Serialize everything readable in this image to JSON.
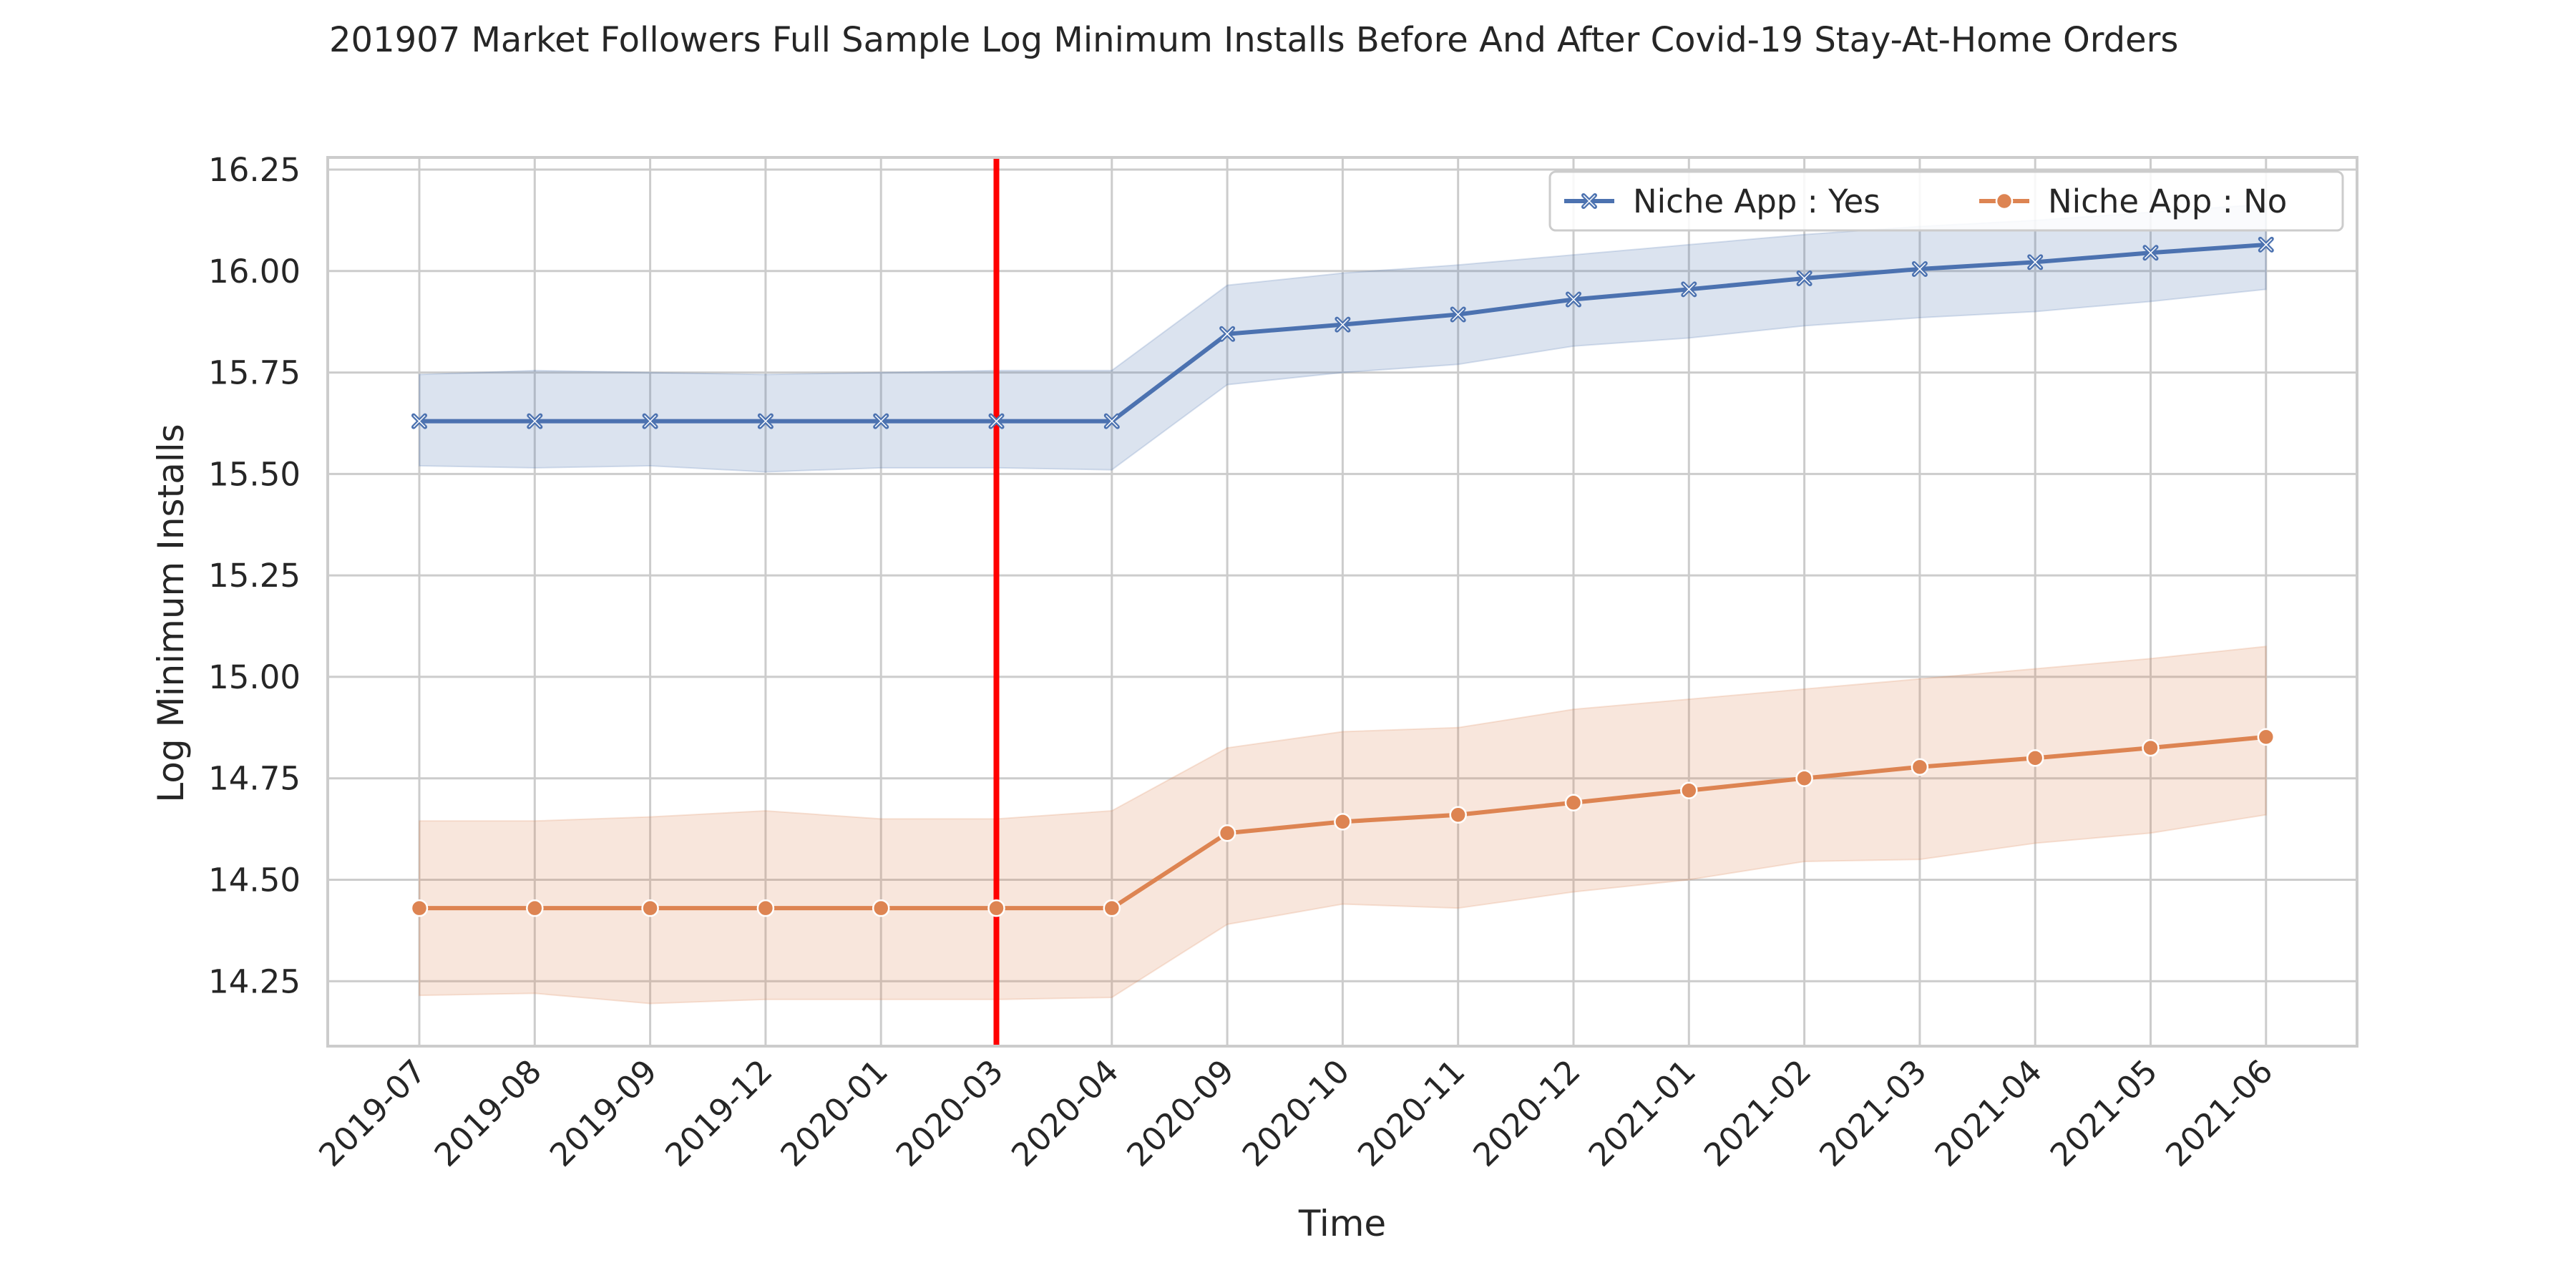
{
  "chart_data": {
    "type": "line",
    "title": "201907 Market Followers Full Sample Log Minimum Installs Before And After Covid-19 Stay-At-Home Orders",
    "xlabel": "Time",
    "ylabel": "Log Minimum Installs",
    "categories": [
      "2019-07",
      "2019-08",
      "2019-09",
      "2019-12",
      "2020-01",
      "2020-03",
      "2020-04",
      "2020-09",
      "2020-10",
      "2020-11",
      "2020-12",
      "2021-01",
      "2021-02",
      "2021-03",
      "2021-04",
      "2021-05",
      "2021-06"
    ],
    "ylim": [
      14.09,
      16.28
    ],
    "yticks": [
      "14.25",
      "14.50",
      "14.75",
      "15.00",
      "15.25",
      "15.50",
      "15.75",
      "16.00",
      "16.25"
    ],
    "grid": true,
    "legend_position": "top-right",
    "vline": {
      "category": "2020-03",
      "color": "#ff0000"
    },
    "series": [
      {
        "name": "Niche App : Yes",
        "color": "#4c72b0",
        "marker": "x",
        "values": [
          15.63,
          15.63,
          15.63,
          15.63,
          15.63,
          15.63,
          15.63,
          15.845,
          15.868,
          15.893,
          15.93,
          15.955,
          15.982,
          16.005,
          16.022,
          16.045,
          16.065
        ],
        "ci_lower": [
          15.52,
          15.515,
          15.52,
          15.505,
          15.515,
          15.515,
          15.51,
          15.72,
          15.75,
          15.77,
          15.815,
          15.835,
          15.865,
          15.885,
          15.9,
          15.925,
          15.955
        ],
        "ci_upper": [
          15.745,
          15.755,
          15.75,
          15.745,
          15.75,
          15.755,
          15.755,
          15.965,
          15.995,
          16.015,
          16.04,
          16.065,
          16.09,
          16.11,
          16.125,
          16.145,
          16.165
        ]
      },
      {
        "name": "Niche App : No",
        "color": "#dd8452",
        "marker": "o",
        "values": [
          14.43,
          14.43,
          14.43,
          14.43,
          14.43,
          14.43,
          14.43,
          14.615,
          14.643,
          14.66,
          14.69,
          14.72,
          14.75,
          14.778,
          14.8,
          14.825,
          14.852
        ],
        "ci_lower": [
          14.215,
          14.22,
          14.195,
          14.205,
          14.205,
          14.205,
          14.21,
          14.39,
          14.44,
          14.43,
          14.47,
          14.5,
          14.545,
          14.55,
          14.59,
          14.615,
          14.66
        ],
        "ci_upper": [
          14.645,
          14.645,
          14.655,
          14.67,
          14.65,
          14.65,
          14.67,
          14.825,
          14.865,
          14.875,
          14.92,
          14.945,
          14.97,
          14.995,
          15.02,
          15.045,
          15.075
        ]
      }
    ]
  }
}
